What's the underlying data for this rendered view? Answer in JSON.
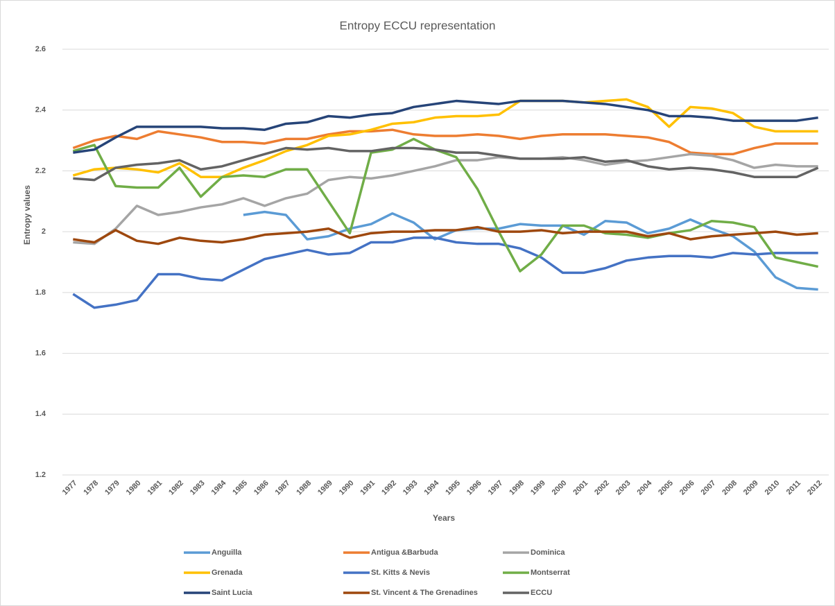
{
  "chart_data": {
    "type": "line",
    "title": "Entropy ECCU representation",
    "x_label": "Years",
    "y_label": "Entropy values",
    "categories": [
      "1977",
      "1978",
      "1979",
      "1980",
      "1981",
      "1982",
      "1983",
      "1984",
      "1985",
      "1986",
      "1987",
      "1988",
      "1989",
      "1990",
      "1991",
      "1992",
      "1993",
      "1994",
      "1995",
      "1996",
      "1997",
      "1998",
      "1999",
      "2000",
      "2001",
      "2002",
      "2003",
      "2004",
      "2005",
      "2006",
      "2007",
      "2008",
      "2009",
      "2010",
      "2011",
      "2012"
    ],
    "ylim": [
      1.2,
      2.6
    ],
    "yticks": [
      1.2,
      1.4,
      1.6,
      1.8,
      2,
      2.2,
      2.4,
      2.6
    ],
    "grid": true,
    "legend": "bottom",
    "series": [
      {
        "name": "Anguilla",
        "color": "#5b9bd5",
        "values": [
          null,
          null,
          null,
          null,
          null,
          null,
          null,
          null,
          2.055,
          2.065,
          2.055,
          1.975,
          1.985,
          2.01,
          2.025,
          2.06,
          2.03,
          1.975,
          2.005,
          2.01,
          2.01,
          2.025,
          2.02,
          2.02,
          1.99,
          2.035,
          2.03,
          1.995,
          2.01,
          2.04,
          2.01,
          1.985,
          1.935,
          1.85,
          1.815,
          1.81
        ]
      },
      {
        "name": "Antigua &Barbuda",
        "color": "#ed7d31",
        "values": [
          2.275,
          2.3,
          2.315,
          2.305,
          2.33,
          2.32,
          2.31,
          2.295,
          2.295,
          2.29,
          2.305,
          2.305,
          2.32,
          2.33,
          2.33,
          2.335,
          2.32,
          2.315,
          2.315,
          2.32,
          2.315,
          2.305,
          2.315,
          2.32,
          2.32,
          2.32,
          2.315,
          2.31,
          2.295,
          2.26,
          2.255,
          2.255,
          2.275,
          2.29,
          2.29,
          2.29
        ]
      },
      {
        "name": "Dominica",
        "color": "#a5a5a5",
        "values": [
          1.965,
          1.96,
          2.01,
          2.085,
          2.055,
          2.065,
          2.08,
          2.09,
          2.11,
          2.085,
          2.11,
          2.125,
          2.17,
          2.18,
          2.175,
          2.185,
          2.2,
          2.215,
          2.235,
          2.235,
          2.245,
          2.24,
          2.24,
          2.245,
          2.235,
          2.22,
          2.23,
          2.235,
          2.245,
          2.255,
          2.25,
          2.235,
          2.21,
          2.22,
          2.215,
          2.215
        ]
      },
      {
        "name": "Grenada",
        "color": "#ffc000",
        "values": [
          2.185,
          2.205,
          2.21,
          2.205,
          2.195,
          2.225,
          2.18,
          2.18,
          2.21,
          2.235,
          2.265,
          2.285,
          2.315,
          2.32,
          2.335,
          2.355,
          2.36,
          2.375,
          2.38,
          2.38,
          2.385,
          2.43,
          2.43,
          2.43,
          2.425,
          2.43,
          2.435,
          2.41,
          2.345,
          2.41,
          2.405,
          2.39,
          2.345,
          2.33,
          2.33,
          2.33
        ]
      },
      {
        "name": "St. Kitts & Nevis",
        "color": "#4472c4",
        "values": [
          1.795,
          1.75,
          1.76,
          1.775,
          1.86,
          1.86,
          1.845,
          1.84,
          1.875,
          1.91,
          1.925,
          1.94,
          1.925,
          1.93,
          1.965,
          1.965,
          1.98,
          1.98,
          1.965,
          1.96,
          1.96,
          1.945,
          1.915,
          1.865,
          1.865,
          1.88,
          1.905,
          1.915,
          1.92,
          1.92,
          1.915,
          1.93,
          1.925,
          1.93,
          1.93,
          1.93
        ]
      },
      {
        "name": "Montserrat",
        "color": "#70ad47",
        "values": [
          2.265,
          2.285,
          2.15,
          2.145,
          2.145,
          2.21,
          2.115,
          2.18,
          2.185,
          2.18,
          2.205,
          2.205,
          2.1,
          1.995,
          2.26,
          2.27,
          2.305,
          2.27,
          2.245,
          2.14,
          2.0,
          1.87,
          1.925,
          2.02,
          2.02,
          1.995,
          1.99,
          1.98,
          1.995,
          2.005,
          2.035,
          2.03,
          2.015,
          1.915,
          1.9,
          1.885
        ]
      },
      {
        "name": "Saint Lucia",
        "color": "#264478",
        "values": [
          2.26,
          2.27,
          2.31,
          2.345,
          2.345,
          2.345,
          2.345,
          2.34,
          2.34,
          2.335,
          2.355,
          2.36,
          2.38,
          2.375,
          2.385,
          2.39,
          2.41,
          2.42,
          2.43,
          2.425,
          2.42,
          2.43,
          2.43,
          2.43,
          2.425,
          2.42,
          2.41,
          2.4,
          2.38,
          2.38,
          2.375,
          2.365,
          2.365,
          2.365,
          2.365,
          2.375
        ]
      },
      {
        "name": "St. Vincent & The Grenadines",
        "color": "#9e480e",
        "values": [
          1.975,
          1.965,
          2.005,
          1.97,
          1.96,
          1.98,
          1.97,
          1.965,
          1.975,
          1.99,
          1.995,
          2.0,
          2.01,
          1.98,
          1.995,
          2.0,
          2.0,
          2.005,
          2.005,
          2.015,
          2.0,
          2.0,
          2.005,
          1.995,
          2.0,
          2.0,
          2.0,
          1.985,
          1.995,
          1.975,
          1.985,
          1.99,
          1.995,
          2.0,
          1.99,
          1.995
        ]
      },
      {
        "name": "ECCU",
        "color": "#636363",
        "values": [
          2.175,
          2.17,
          2.21,
          2.22,
          2.225,
          2.235,
          2.205,
          2.215,
          2.235,
          2.255,
          2.275,
          2.27,
          2.275,
          2.265,
          2.265,
          2.275,
          2.275,
          2.27,
          2.26,
          2.26,
          2.25,
          2.24,
          2.24,
          2.24,
          2.245,
          2.23,
          2.235,
          2.215,
          2.205,
          2.21,
          2.205,
          2.195,
          2.18,
          2.18,
          2.18,
          2.21
        ]
      }
    ]
  }
}
